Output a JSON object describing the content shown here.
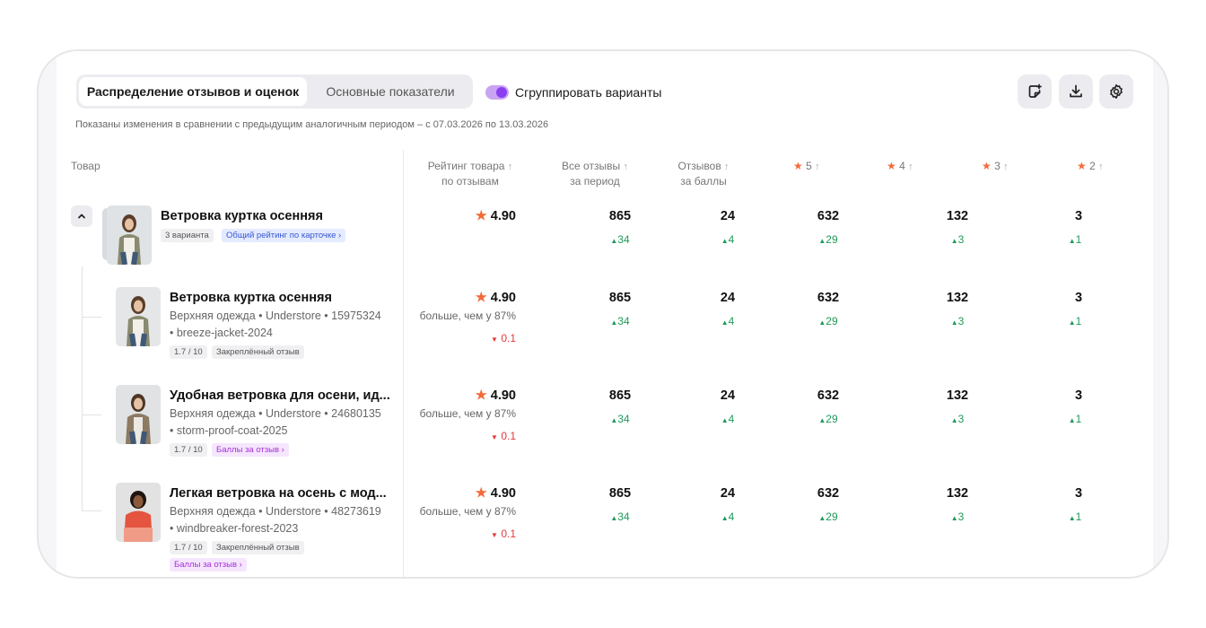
{
  "tabs": {
    "active": "Распределение отзывов и оценок",
    "inactive": "Основные показатели"
  },
  "toggle": {
    "label": "Сгруппировать варианты",
    "on": true
  },
  "toolbar_icons": [
    "add-note-icon",
    "download-icon",
    "settings-icon"
  ],
  "period_note": "Показаны изменения в сравнении с предыдущим аналогичным периодом – с 07.03.2026 по 13.03.2026",
  "columns": {
    "product": "Товар",
    "rating_l1": "Рейтинг товара",
    "rating_l2": "по отзывам",
    "all_l1": "Все отзывы",
    "all_l2": "за период",
    "points_l1": "Отзывов",
    "points_l2": "за баллы",
    "s5": "5",
    "s4": "4",
    "s3": "3",
    "s2": "2"
  },
  "group": {
    "title": "Ветровка куртка осенняя",
    "variants_chip": "3 варианта",
    "rating_chip": "Общий рейтинг по карточке",
    "rating": "4.90",
    "all": "865",
    "all_d": "34",
    "points": "24",
    "points_d": "4",
    "s5": "632",
    "s5_d": "29",
    "s4": "132",
    "s4_d": "3",
    "s3": "3",
    "s3_d": "1"
  },
  "rows": [
    {
      "title": "Ветровка куртка осенняя",
      "meta1": "Верхняя одежда • Understore • 15975324",
      "meta2": "• breeze-jacket-2024",
      "chip1": "1.7 / 10",
      "chip2": "Закреплённый отзыв",
      "rating": "4.90",
      "rating_sub": "больше, чем у 87%",
      "rating_d": "0.1",
      "all": "865",
      "all_d": "34",
      "points": "24",
      "points_d": "4",
      "s5": "632",
      "s5_d": "29",
      "s4": "132",
      "s4_d": "3",
      "s3": "3",
      "s3_d": "1"
    },
    {
      "title": "Удобная ветровка для осени, ид...",
      "meta1": "Верхняя одежда • Understore • 24680135",
      "meta2": "• storm-proof-coat-2025",
      "chip1": "1.7 / 10",
      "chip2": "Баллы за отзыв",
      "rating": "4.90",
      "rating_sub": "больше, чем у 87%",
      "rating_d": "0.1",
      "all": "865",
      "all_d": "34",
      "points": "24",
      "points_d": "4",
      "s5": "632",
      "s5_d": "29",
      "s4": "132",
      "s4_d": "3",
      "s3": "3",
      "s3_d": "1"
    },
    {
      "title": "Легкая ветровка на осень с мод...",
      "meta1": "Верхняя одежда • Understore • 48273619",
      "meta2": "• windbreaker-forest-2023",
      "chip1": "1.7 / 10",
      "chip2": "Закреплённый отзыв",
      "chip3": "Баллы за отзыв",
      "rating": "4.90",
      "rating_sub": "больше, чем у 87%",
      "rating_d": "0.1",
      "all": "865",
      "all_d": "34",
      "points": "24",
      "points_d": "4",
      "s5": "632",
      "s5_d": "29",
      "s4": "132",
      "s4_d": "3",
      "s3": "3",
      "s3_d": "1"
    }
  ],
  "colors": {
    "accent": "#8b3ff0",
    "up": "#1f9a5a",
    "down": "#e33a3a",
    "star": "#f26b3a"
  }
}
